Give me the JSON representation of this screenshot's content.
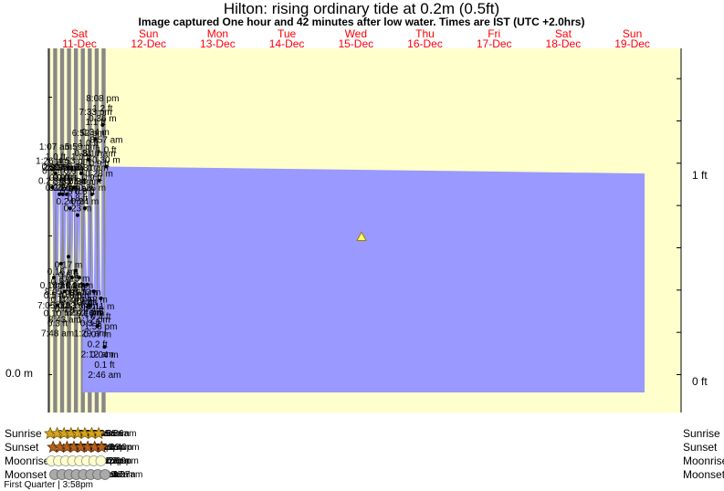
{
  "title": "Hilton: rising  ordinary tide at 0.2m (0.5ft)",
  "subtitle": "Image captured One hour and 42 minutes after low water. Times are IST (UTC +2.0hrs)",
  "colors": {
    "day": "#ffffcc",
    "night": "#888888",
    "water": "#9999ff",
    "day_label": "#ff0000",
    "sun_icon": "#d6a51f",
    "sunset_icon": "#b8611a",
    "moonrise_icon": "#ffffcc",
    "moonset_icon": "#aaaaaa"
  },
  "days": [
    {
      "name": "Sat",
      "date": "11-Dec"
    },
    {
      "name": "Sun",
      "date": "12-Dec"
    },
    {
      "name": "Mon",
      "date": "13-Dec"
    },
    {
      "name": "Tue",
      "date": "14-Dec"
    },
    {
      "name": "Wed",
      "date": "15-Dec"
    },
    {
      "name": "Thu",
      "date": "16-Dec"
    },
    {
      "name": "Fri",
      "date": "17-Dec"
    },
    {
      "name": "Sat",
      "date": "18-Dec"
    },
    {
      "name": "Sun",
      "date": "19-Dec"
    }
  ],
  "axes": {
    "left_zero_label": "0.0 m",
    "right_labels": [
      "1 ft",
      "0 ft"
    ]
  },
  "chart_data": {
    "type": "area",
    "x_unit": "hours from Sat 11-Dec 00:00 (IST)",
    "y_unit": "m",
    "ylim": [
      -0.04,
      0.47
    ],
    "current_marker": {
      "label": "rising ordinary tide",
      "height_m": 0.2
    },
    "extrema": [
      {
        "kind": "high",
        "hour": 13.43,
        "height_m": 0.27,
        "time": "1:26 pm",
        "ft": "0.9 ft",
        "m": "0.27 m"
      },
      {
        "kind": "low",
        "hour": 19.08,
        "height_m": 0.14,
        "time": "7:05 pm",
        "ft": "0.5 ft",
        "m": "0.14 m"
      },
      {
        "kind": "high",
        "hour": 25.12,
        "height_m": 0.29,
        "time": "1:07 am",
        "ft": "1.0 ft",
        "m": "0.29 m"
      },
      {
        "kind": "low",
        "hour": 31.8,
        "height_m": 0.1,
        "time": "7:48 am",
        "ft": "0.3 ft",
        "m": "0.10 m"
      },
      {
        "kind": "high",
        "hour": 38.33,
        "height_m": 0.26,
        "time": "2:20 pm",
        "ft": "0.9 ft",
        "m": "0.26 m"
      },
      {
        "kind": "low",
        "hour": 44.08,
        "height_m": 0.16,
        "time": "8:05 pm",
        "ft": "0.5 ft",
        "m": "0.16 m"
      },
      {
        "kind": "high",
        "hour": 50.12,
        "height_m": 0.26,
        "time": "2:07 am",
        "ft": "0.9 ft",
        "m": "0.26 m"
      },
      {
        "kind": "low",
        "hour": 56.72,
        "height_m": 0.12,
        "time": "8:43 am",
        "ft": "0.4 ft",
        "m": "0.12 m"
      },
      {
        "kind": "high",
        "hour": 63.58,
        "height_m": 0.26,
        "time": "3:35 pm",
        "ft": "0.9 ft",
        "m": "0.26 m"
      },
      {
        "kind": "low",
        "hour": 69.62,
        "height_m": 0.17,
        "time": "9:37 pm",
        "ft": "0.6 ft",
        "m": "0.17 m"
      },
      {
        "kind": "high",
        "hour": 75.55,
        "height_m": 0.24,
        "time": "3:33 am",
        "ft": "0.8 ft",
        "m": "0.24 m"
      },
      {
        "kind": "low",
        "hour": 82.05,
        "height_m": 0.14,
        "time": "10:03 am",
        "ft": "0.5 ft",
        "m": "0.14 m"
      },
      {
        "kind": "high",
        "hour": 88.88,
        "height_m": 0.27,
        "time": "4:53 pm",
        "ft": "0.9 ft",
        "m": "0.27 m"
      },
      {
        "kind": "low",
        "hour": 95.38,
        "height_m": 0.15,
        "time": "11:23 pm",
        "ft": "0.5 ft",
        "m": "0.15 m"
      },
      {
        "kind": "high",
        "hour": 101.23,
        "height_m": 0.23,
        "time": "5:14 am",
        "ft": "0.8 ft",
        "m": "0.23 m"
      },
      {
        "kind": "low",
        "hour": 107.32,
        "height_m": 0.14,
        "time": "11:19 am",
        "ft": "0.5 ft",
        "m": "0.14 m"
      },
      {
        "kind": "high",
        "hour": 113.98,
        "height_m": 0.29,
        "time": "5:59 pm",
        "ft": "1.0 ft",
        "m": "0.29 m"
      },
      {
        "kind": "low",
        "hour": 120.68,
        "height_m": 0.13,
        "time": "12:41 am",
        "ft": "0.4 ft",
        "m": "0.13 m"
      },
      {
        "kind": "high",
        "hour": 126.57,
        "height_m": 0.24,
        "time": "6:34 am",
        "ft": "0.8 ft",
        "m": "0.24 m"
      },
      {
        "kind": "low",
        "hour": 134.4,
        "height_m": 0.13,
        "time": "2:24 pm",
        "ft": "0.4 ft",
        "m": "0.13 m"
      },
      {
        "kind": "high",
        "hour": 138.87,
        "height_m": 0.31,
        "time": "6:52 pm",
        "ft": "1.0 ft",
        "m": "0.31 m"
      },
      {
        "kind": "low",
        "hour": 145.48,
        "height_m": 0.1,
        "time": "1:29 am",
        "ft": "0.3 ft",
        "m": "0.10 m"
      },
      {
        "kind": "high",
        "hour": 151.52,
        "height_m": 0.26,
        "time": "7:31 am",
        "ft": "0.9 ft",
        "m": "0.26 m"
      },
      {
        "kind": "low",
        "hour": 157.2,
        "height_m": 0.12,
        "time": "1:12 pm",
        "ft": "0.4 ft",
        "m": "0.12 m"
      },
      {
        "kind": "high",
        "hour": 163.55,
        "height_m": 0.34,
        "time": "7:33 pm",
        "ft": "1.1 ft",
        "m": "0.34 m"
      },
      {
        "kind": "low",
        "hour": 170.2,
        "height_m": 0.07,
        "time": "2:12 am",
        "ft": "0.2 ft",
        "m": "0.07 m"
      },
      {
        "kind": "high",
        "hour": 176.28,
        "height_m": 0.28,
        "time": "8:17 am",
        "ft": "0.9 ft",
        "m": "0.28 m"
      },
      {
        "kind": "low",
        "hour": 181.88,
        "height_m": 0.11,
        "time": "1:53 pm",
        "ft": "0.4 ft",
        "m": "0.11 m"
      },
      {
        "kind": "high",
        "hour": 188.13,
        "height_m": 0.36,
        "time": "8:08 pm",
        "ft": "1.2 ft",
        "m": "0.36 m"
      },
      {
        "kind": "low",
        "hour": 194.77,
        "height_m": 0.04,
        "time": "2:46 am",
        "ft": "0.1 ft",
        "m": "0.04 m"
      },
      {
        "kind": "high",
        "hour": 200.95,
        "height_m": 0.3,
        "time": "8:57 am",
        "ft": "1.0 ft",
        "m": "0.30 m"
      }
    ],
    "nights": [
      [
        0,
        6.5
      ],
      [
        16.62,
        30.52
      ],
      [
        40.63,
        54.53
      ],
      [
        64.63,
        78.55
      ],
      [
        88.63,
        102.55
      ],
      [
        112.63,
        126.57
      ],
      [
        136.65,
        150.58
      ],
      [
        160.65,
        174.58
      ],
      [
        184.67,
        198.6
      ]
    ]
  },
  "legend": {
    "labels": [
      "Sunrise",
      "Sunset",
      "Moonrise",
      "Moonset"
    ],
    "sunrise": [
      {
        "hour": 6.52,
        "time": "6:31am"
      },
      {
        "hour": 30.53,
        "time": "6:32am"
      },
      {
        "hour": 54.55,
        "time": "6:33am"
      },
      {
        "hour": 78.55,
        "time": "6:33am"
      },
      {
        "hour": 102.57,
        "time": "6:34am"
      },
      {
        "hour": 126.58,
        "time": "6:35am"
      },
      {
        "hour": 150.58,
        "time": "6:35am"
      },
      {
        "hour": 174.6,
        "time": "6:36am"
      }
    ],
    "sunset": [
      {
        "hour": 16.62,
        "time": "4:37pm"
      },
      {
        "hour": 40.63,
        "time": "4:38pm"
      },
      {
        "hour": 64.63,
        "time": "4:38pm"
      },
      {
        "hour": 88.63,
        "time": "4:38pm"
      },
      {
        "hour": 112.63,
        "time": "4:38pm"
      },
      {
        "hour": 136.65,
        "time": "4:39pm"
      },
      {
        "hour": 160.65,
        "time": "4:39pm"
      },
      {
        "hour": 184.67,
        "time": "4:40pm"
      }
    ],
    "moonrise": [
      {
        "hour": 10.47,
        "time": "10:28am"
      },
      {
        "hour": 34.95,
        "time": "10:57am"
      },
      {
        "hour": 59.4,
        "time": "11:24am"
      },
      {
        "hour": 83.87,
        "time": "11:52am"
      },
      {
        "hour": 108.35,
        "time": "12:21pm"
      },
      {
        "hour": 132.88,
        "time": "12:53pm"
      },
      {
        "hour": 157.47,
        "time": "1:28pm"
      },
      {
        "hour": 182.15,
        "time": "2:09pm"
      }
    ],
    "moonset": [
      {
        "hour": 22.1,
        "time": "10:06pm"
      },
      {
        "hour": 47.0,
        "time": "11:00pm"
      },
      {
        "hour": 71.88,
        "time": "11:53pm"
      },
      {
        "hour": 96.78,
        "time": "12:47am"
      },
      {
        "hour": 121.7,
        "time": "1:42am"
      },
      {
        "hour": 146.65,
        "time": "2:39am"
      },
      {
        "hour": 171.62,
        "time": "3:37am"
      },
      {
        "hour": 196.62,
        "time": "4:37am"
      }
    ],
    "moon_phase": {
      "hour": 63.97,
      "text": "First Quarter | 3:58pm"
    }
  }
}
